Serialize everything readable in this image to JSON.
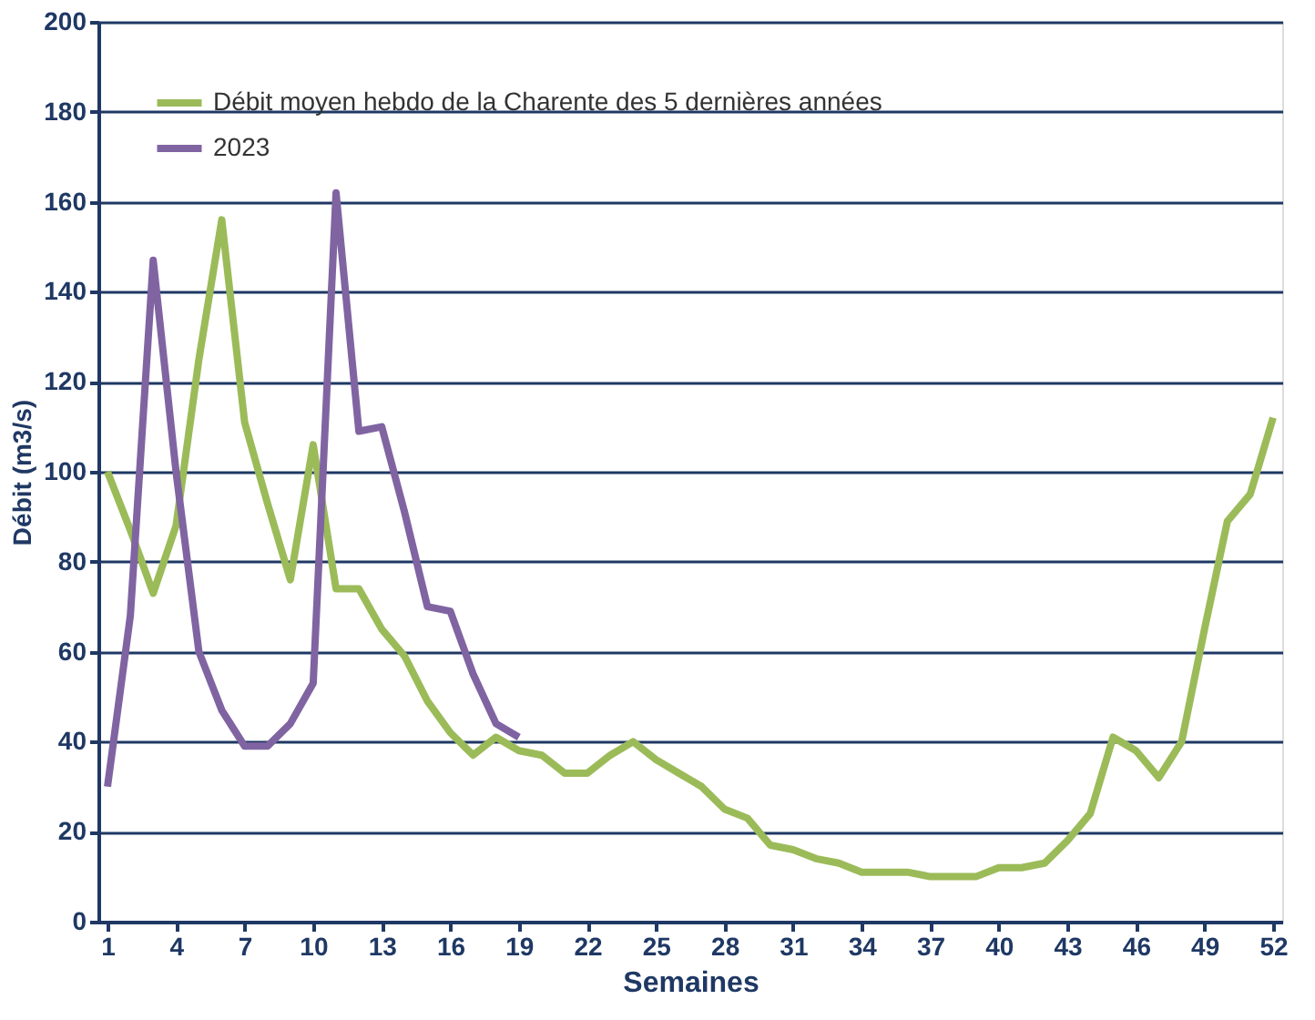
{
  "chart_data": {
    "type": "line",
    "xlabel": "Semaines",
    "ylabel": "Débit (m3/s)",
    "x": [
      1,
      2,
      3,
      4,
      5,
      6,
      7,
      8,
      9,
      10,
      11,
      12,
      13,
      14,
      15,
      16,
      17,
      18,
      19,
      20,
      21,
      22,
      23,
      24,
      25,
      26,
      27,
      28,
      29,
      30,
      31,
      32,
      33,
      34,
      35,
      36,
      37,
      38,
      39,
      40,
      41,
      42,
      43,
      44,
      45,
      46,
      47,
      48,
      49,
      50,
      51,
      52
    ],
    "xlim": [
      0.6,
      52.4
    ],
    "xticks": [
      1,
      4,
      7,
      10,
      13,
      16,
      19,
      22,
      25,
      28,
      31,
      34,
      37,
      40,
      43,
      46,
      49,
      52
    ],
    "ylim": [
      0,
      200
    ],
    "yticks": [
      0,
      20,
      40,
      60,
      80,
      100,
      120,
      140,
      160,
      180,
      200
    ],
    "grid": "y",
    "legend": "top left",
    "marker": "none",
    "line_style": "solid",
    "series": [
      {
        "name": "Débit moyen hebdo de la Charente des 5 dernières années",
        "color": "#9bbb59",
        "values": [
          100,
          87,
          73,
          88,
          125,
          156,
          111,
          93,
          76,
          106,
          74,
          74,
          65,
          59,
          49,
          42,
          37,
          41,
          38,
          37,
          33,
          33,
          37,
          40,
          36,
          33,
          30,
          25,
          23,
          17,
          16,
          14,
          13,
          11,
          11,
          11,
          10,
          10,
          10,
          12,
          12,
          13,
          18,
          24,
          41,
          38,
          32,
          40,
          65,
          89,
          95,
          112
        ]
      },
      {
        "name": "2023",
        "color": "#8064a2",
        "x": [
          1,
          2,
          3,
          4,
          5,
          6,
          7,
          8,
          9,
          10,
          11,
          12,
          13,
          14,
          15,
          16,
          17,
          18,
          19
        ],
        "values": [
          30,
          68,
          147,
          100,
          60,
          47,
          39,
          39,
          44,
          53,
          162,
          109,
          110,
          91,
          70,
          69,
          55,
          44,
          41
        ]
      }
    ]
  }
}
